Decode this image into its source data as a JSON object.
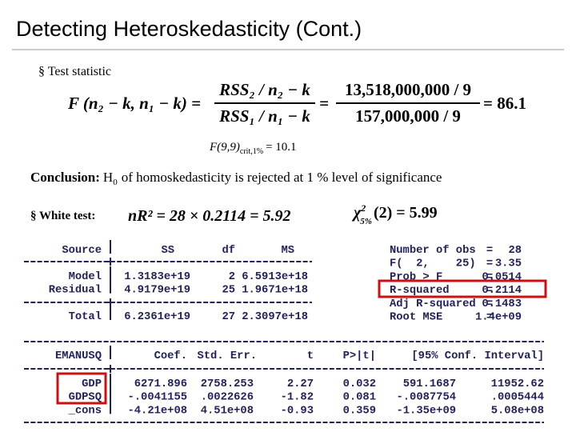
{
  "header": {
    "title": "Detecting Heteroskedasticity (Cont.)"
  },
  "test_statistic": {
    "bullet": "§ Test statistic",
    "lhs": "F (n₂ − k, n₁ − k) =",
    "numerator": "RSS₂ / n₂ − k",
    "denominator": "RSS₁ / n₁ − k",
    "num_value": "13,518,000,000 / 9",
    "den_value": "157,000,000 / 9",
    "result": "= 86.1",
    "critical": {
      "main": "F(9,9)",
      "sub": "crit,1%",
      "value": "= 10.1"
    }
  },
  "conclusion": {
    "label": "Conclusion:",
    "h": "H",
    "h_sub": "0",
    "text": "of homoskedasticity is rejected at 1 % level of significance"
  },
  "white_test": {
    "bullet": "§ White test:",
    "formula": "nR² = 28 × 0.2114 = 5.92",
    "chi": "χ",
    "chi_sup": "2",
    "chi_sub": "5%",
    "chi_rest": "(2) = 5.99"
  },
  "stata": {
    "anova": {
      "header": [
        "Source",
        "SS",
        "df",
        "MS"
      ],
      "rows": [
        [
          "Model",
          "1.3183e+19",
          "2",
          "6.5913e+18"
        ],
        [
          "Residual",
          "4.9179e+19",
          "25",
          "1.9671e+18"
        ]
      ],
      "total": [
        "Total",
        "6.2361e+19",
        "27",
        "2.3097e+18"
      ]
    },
    "fit": [
      [
        "Number of obs",
        "=",
        "28"
      ],
      [
        "F(  2,    25)",
        "=",
        "3.35"
      ],
      [
        "Prob > F",
        "=",
        "0.0514"
      ],
      [
        "R-squared",
        "=",
        "0.2114"
      ],
      [
        "Adj R-squared",
        "=",
        "0.1483"
      ],
      [
        "Root MSE",
        "=",
        "1.4e+09"
      ]
    ],
    "regression": {
      "header": [
        "EMANUSQ",
        "Coef.",
        "Std. Err.",
        "t",
        "P>|t|",
        "[95% Conf. Interval]"
      ],
      "rows": [
        [
          "GDP",
          "6271.896",
          "2758.253",
          "2.27",
          "0.032",
          "591.1687",
          "11952.62"
        ],
        [
          "GDPSQ",
          "-.0041155",
          ".0022626",
          "-1.82",
          "0.081",
          "-.0087754",
          ".0005444"
        ],
        [
          "_cons",
          "-4.21e+08",
          "4.51e+08",
          "-0.93",
          "0.359",
          "-1.35e+09",
          "5.08e+08"
        ]
      ]
    }
  }
}
